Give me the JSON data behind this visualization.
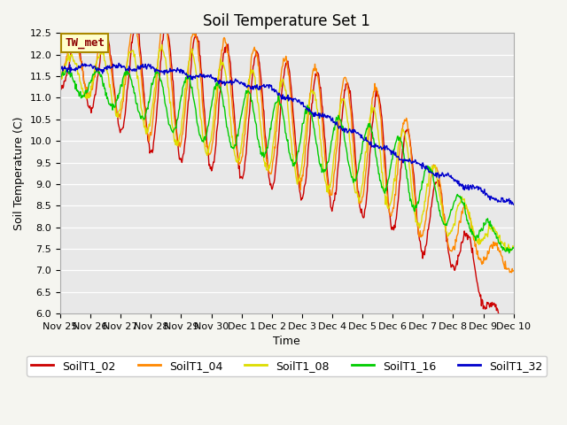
{
  "title": "Soil Temperature Set 1",
  "xlabel": "Time",
  "ylabel": "Soil Temperature (C)",
  "ylim": [
    6.0,
    12.5
  ],
  "annotation": "TW_met",
  "series_labels": [
    "SoilT1_02",
    "SoilT1_04",
    "SoilT1_08",
    "SoilT1_16",
    "SoilT1_32"
  ],
  "series_colors": [
    "#cc0000",
    "#ff8800",
    "#dddd00",
    "#00cc00",
    "#0000cc"
  ],
  "xtick_labels": [
    "Nov 25",
    "Nov 26",
    "Nov 27",
    "Nov 28",
    "Nov 29",
    "Nov 30",
    "Dec 1",
    "Dec 2",
    "Dec 3",
    "Dec 4",
    "Dec 5",
    "Dec 6",
    "Dec 7",
    "Dec 8",
    "Dec 9",
    "Dec 10"
  ],
  "title_fontsize": 12,
  "axis_label_fontsize": 9,
  "tick_fontsize": 8,
  "legend_fontsize": 9,
  "line_width": 1.0
}
